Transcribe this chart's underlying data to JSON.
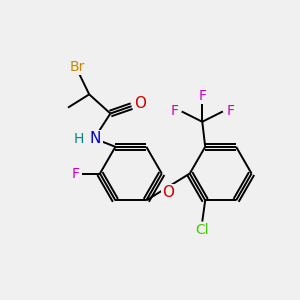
{
  "background_color": "#f0f0f0",
  "atom_colors": {
    "Br": "#cc8800",
    "O": "#cc0000",
    "N": "#0000cc",
    "H": "#008888",
    "F": "#cc00cc",
    "Cl": "#44cc00",
    "C": "#000000"
  },
  "figsize": [
    3.0,
    3.0
  ],
  "dpi": 100
}
